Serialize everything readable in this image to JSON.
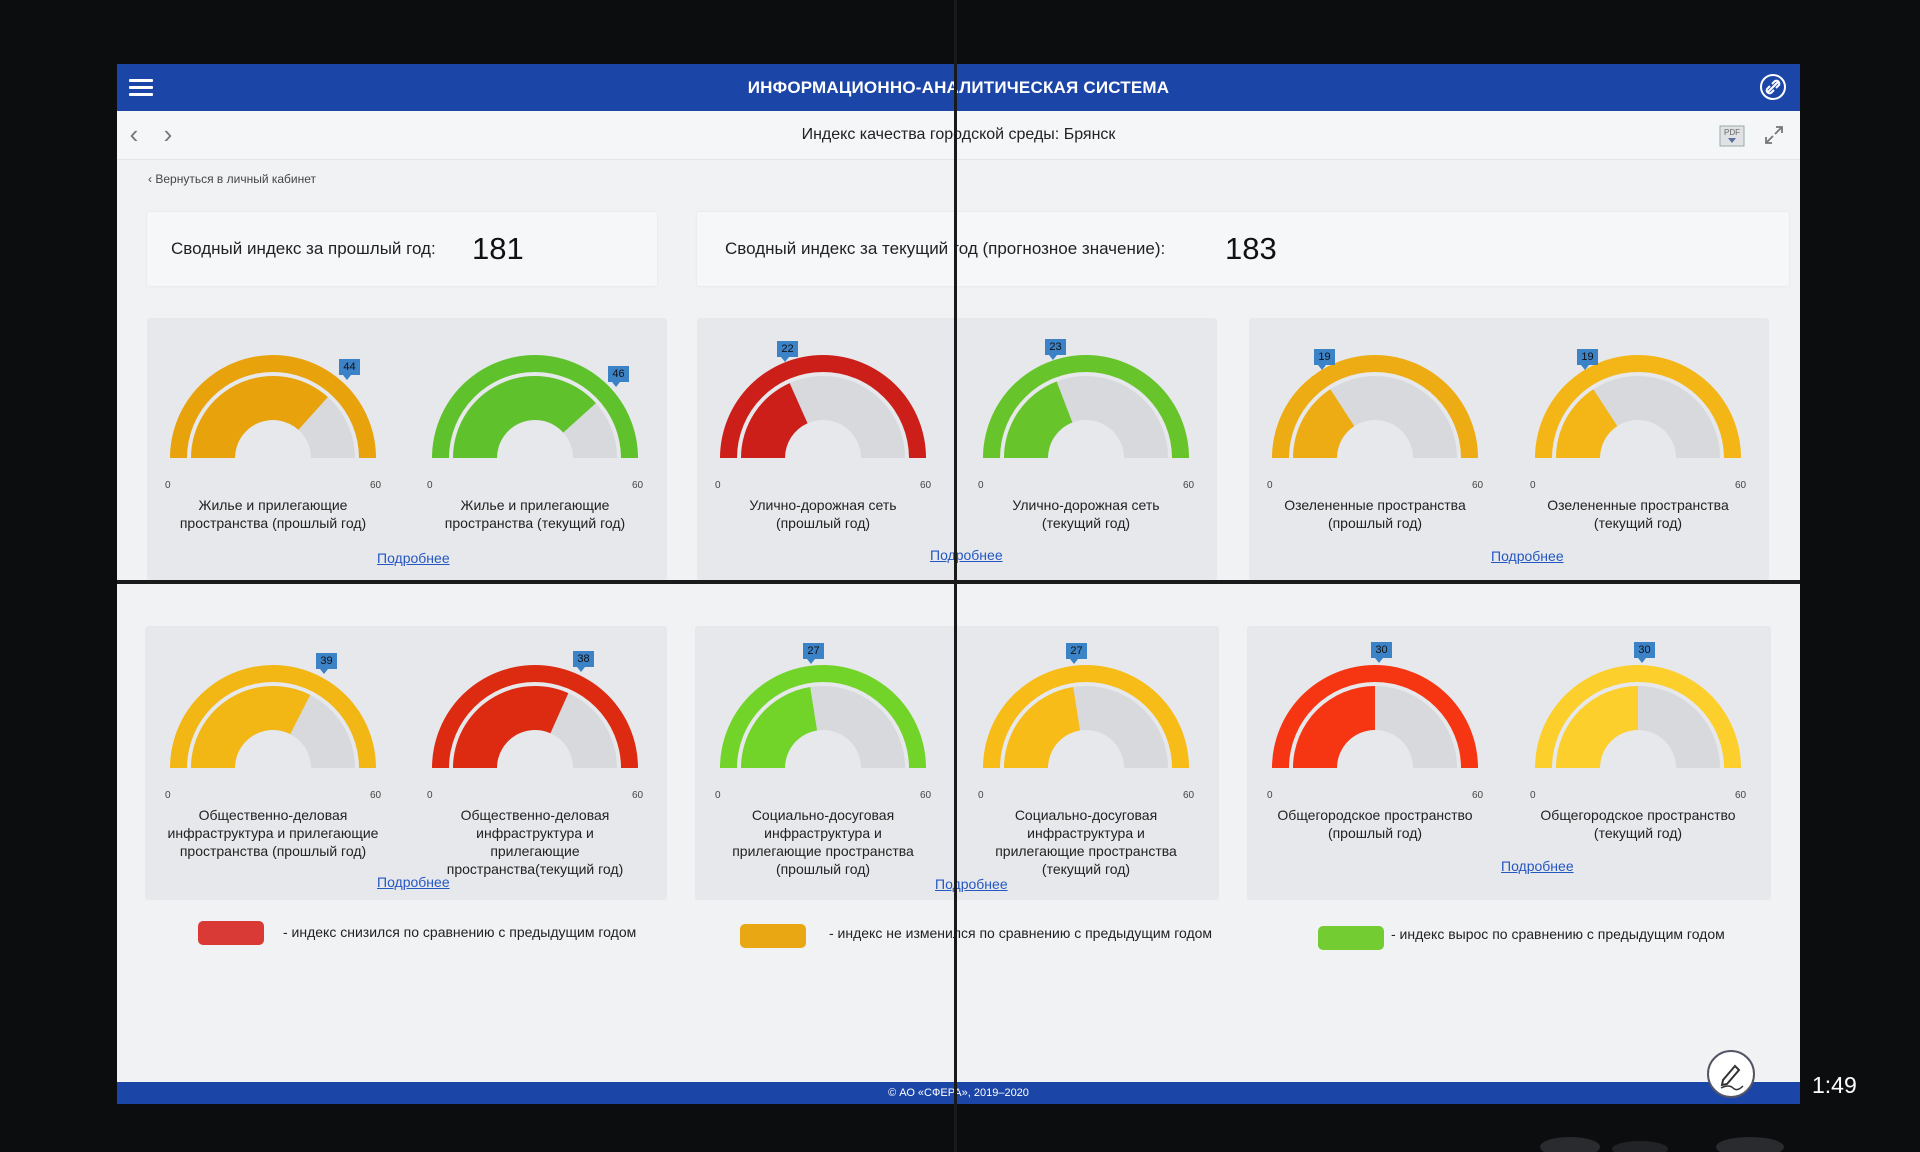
{
  "app": {
    "title": "ИНФОРМАЦИОННО-АНАЛИТИЧЕСКАЯ СИСТЕМА"
  },
  "page": {
    "title": "Индекс качества городской среды: Брянск",
    "back_link": "Вернуться в личный кабинет"
  },
  "summary": {
    "prev": {
      "label": "Сводный индекс за прошлый год:",
      "value": "181"
    },
    "curr": {
      "label": "Сводный индекс за текущий год (прогнозное значение):",
      "value": "183"
    }
  },
  "gauges": [
    {
      "value": 44,
      "max": 60,
      "color": "#e8a20c",
      "label_lines": [
        "Жилье и прилегающие",
        "пространства (прошлый год)"
      ]
    },
    {
      "value": 46,
      "max": 60,
      "color": "#5fc22c",
      "label_lines": [
        "Жилье и прилегающие",
        "пространства (текущий год)"
      ]
    },
    {
      "value": 22,
      "max": 60,
      "color": "#cc1f1a",
      "label_lines": [
        "Улично-дорожная сеть",
        "(прошлый год)"
      ]
    },
    {
      "value": 23,
      "max": 60,
      "color": "#67c42a",
      "label_lines": [
        "Улично-дорожная сеть",
        "(текущий год)"
      ]
    },
    {
      "value": 19,
      "max": 60,
      "color": "#eeac14",
      "label_lines": [
        "Озелененные пространства",
        "(прошлый год)"
      ]
    },
    {
      "value": 19,
      "max": 60,
      "color": "#f4b516",
      "label_lines": [
        "Озелененные пространства",
        "(текущий год)"
      ]
    },
    {
      "value": 39,
      "max": 60,
      "color": "#f2b714",
      "label_lines": [
        "Общественно-деловая",
        "инфраструктура и прилегающие",
        "пространства (прошлый год)"
      ]
    },
    {
      "value": 38,
      "max": 60,
      "color": "#dd2b12",
      "label_lines": [
        "Общественно-деловая",
        "инфраструктура и",
        "прилегающие",
        "пространства(текущий год)"
      ]
    },
    {
      "value": 27,
      "max": 60,
      "color": "#72d329",
      "label_lines": [
        "Социально-досуговая",
        "инфраструктура и",
        "прилегающие пространства",
        "(прошлый год)"
      ]
    },
    {
      "value": 27,
      "max": 60,
      "color": "#f7bc18",
      "label_lines": [
        "Социально-досуговая",
        "инфраструктура и",
        "прилегающие пространства",
        "(текущий год)"
      ]
    },
    {
      "value": 30,
      "max": 60,
      "color": "#f63512",
      "label_lines": [
        "Общегородское пространство",
        "(прошлый год)"
      ]
    },
    {
      "value": 30,
      "max": 60,
      "color": "#fccf2c",
      "label_lines": [
        "Общегородское пространство",
        "(текущий год)"
      ]
    }
  ],
  "scale": {
    "min": "0",
    "max": "60"
  },
  "more_label": "Подробнее",
  "legend": [
    {
      "color": "#d93a36",
      "text": "- индекс снизился по сравнению с предыдущим годом"
    },
    {
      "color": "#e9a714",
      "text": "- индекс не изменился по сравнению с предыдущим годом"
    },
    {
      "color": "#72cc32",
      "text": "- индекс вырос по сравнению с предыдущим годом"
    }
  ],
  "footer": {
    "copyright": "© АО «СФЕРА», 2019–2020"
  },
  "clock": "1:49",
  "icons": [
    "hamburger-menu-icon",
    "link-settings-icon",
    "chevron-left-icon",
    "chevron-right-icon",
    "pdf-download-icon",
    "expand-icon",
    "pen-icon"
  ]
}
